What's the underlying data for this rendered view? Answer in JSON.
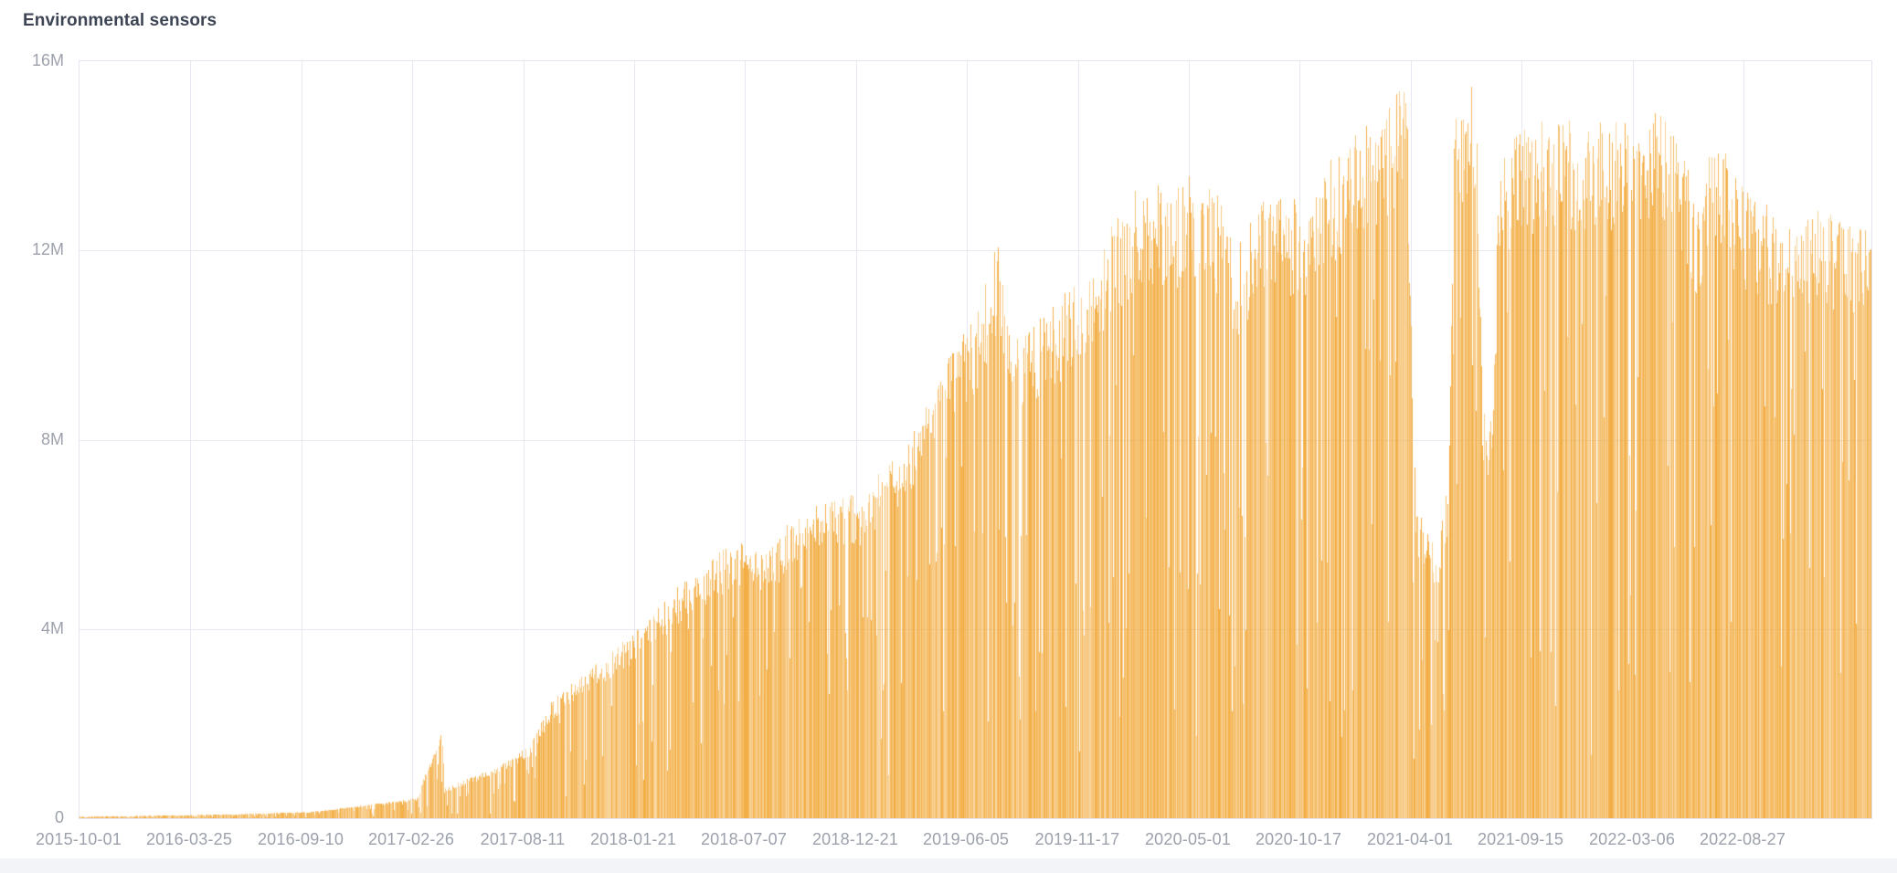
{
  "panel": {
    "title": "Environmental sensors"
  },
  "colors": {
    "bar": "#f2aa3c",
    "bar_rgb": [
      242,
      170,
      60
    ],
    "grid": "#e6e8f2",
    "plot_border": "#e3e5f0",
    "title_text": "#3d4454",
    "axis_text": "#9ca1ab",
    "background": "#ffffff",
    "footer_strip": "#f3f4f7"
  },
  "chart_data": {
    "type": "bar",
    "title": "Environmental sensors",
    "xlabel": "",
    "ylabel": "",
    "grid": true,
    "legend": "none",
    "ylim": [
      0,
      16000000
    ],
    "y_ticks": [
      "0",
      "4M",
      "8M",
      "12M",
      "16M"
    ],
    "x_ticks": [
      "2015-10-01",
      "2016-03-25",
      "2016-09-10",
      "2017-02-26",
      "2017-08-11",
      "2018-01-21",
      "2018-07-07",
      "2018-12-21",
      "2019-06-05",
      "2019-11-17",
      "2020-05-01",
      "2020-10-17",
      "2021-04-01",
      "2021-09-15",
      "2022-03-06",
      "2022-08-27"
    ],
    "x_range": [
      "2015-10-01",
      "2023-02-25"
    ],
    "bar_granularity": "daily",
    "series": [
      {
        "name": "Environmental sensors",
        "envelope_points_millions": [
          [
            "2015-10-01",
            0.03
          ],
          [
            "2016-01-01",
            0.05
          ],
          [
            "2016-04-01",
            0.07
          ],
          [
            "2016-07-01",
            0.1
          ],
          [
            "2016-09-10",
            0.13
          ],
          [
            "2016-11-01",
            0.22
          ],
          [
            "2017-01-01",
            0.32
          ],
          [
            "2017-02-20",
            0.42
          ],
          [
            "2017-03-31",
            1.88
          ],
          [
            "2017-04-03",
            0.62
          ],
          [
            "2017-05-15",
            0.85
          ],
          [
            "2017-07-01",
            1.15
          ],
          [
            "2017-08-11",
            1.5
          ],
          [
            "2017-09-11",
            2.4
          ],
          [
            "2017-11-01",
            3.0
          ],
          [
            "2018-01-21",
            3.9
          ],
          [
            "2018-03-28",
            4.85
          ],
          [
            "2018-05-15",
            5.4
          ],
          [
            "2018-07-07",
            5.85
          ],
          [
            "2018-08-05",
            5.45
          ],
          [
            "2018-09-15",
            6.3
          ],
          [
            "2018-12-21",
            6.7
          ],
          [
            "2019-01-15",
            7.0
          ],
          [
            "2019-02-19",
            7.65
          ],
          [
            "2019-04-01",
            8.6
          ],
          [
            "2019-05-20",
            10.0
          ],
          [
            "2019-06-20",
            10.6
          ],
          [
            "2019-07-20",
            12.1
          ],
          [
            "2019-08-05",
            9.9
          ],
          [
            "2019-09-15",
            10.2
          ],
          [
            "2019-11-01",
            10.9
          ],
          [
            "2019-11-20",
            11.1
          ],
          [
            "2019-12-20",
            11.9
          ],
          [
            "2020-01-20",
            12.5
          ],
          [
            "2020-02-25",
            13.2
          ],
          [
            "2020-04-05",
            12.9
          ],
          [
            "2020-05-01",
            13.2
          ],
          [
            "2020-06-10",
            12.9
          ],
          [
            "2020-07-10",
            11.7
          ],
          [
            "2020-08-10",
            12.6
          ],
          [
            "2020-09-20",
            12.9
          ],
          [
            "2020-10-25",
            12.6
          ],
          [
            "2020-12-01",
            13.6
          ],
          [
            "2021-01-20",
            14.3
          ],
          [
            "2021-03-01",
            14.8
          ],
          [
            "2021-03-25",
            15.2
          ],
          [
            "2021-04-08",
            6.4
          ],
          [
            "2021-05-10",
            5.5
          ],
          [
            "2021-05-28",
            7.0
          ],
          [
            "2021-06-05",
            15.1
          ],
          [
            "2021-07-08",
            15.0
          ],
          [
            "2021-07-18",
            8.4
          ],
          [
            "2021-08-02",
            8.2
          ],
          [
            "2021-08-12",
            13.6
          ],
          [
            "2021-09-15",
            14.2
          ],
          [
            "2021-11-01",
            14.4
          ],
          [
            "2022-01-15",
            14.4
          ],
          [
            "2022-03-06",
            14.5
          ],
          [
            "2022-04-10",
            14.6
          ],
          [
            "2022-05-05",
            14.2
          ],
          [
            "2022-05-25",
            13.3
          ],
          [
            "2022-06-08",
            12.6
          ],
          [
            "2022-06-22",
            14.0
          ],
          [
            "2022-07-20",
            13.7
          ],
          [
            "2022-08-12",
            13.0
          ],
          [
            "2022-08-27",
            12.8
          ],
          [
            "2022-10-01",
            12.5
          ],
          [
            "2022-11-10",
            12.7
          ],
          [
            "2022-12-20",
            12.4
          ],
          [
            "2023-02-25",
            12.4
          ]
        ],
        "daily_variation": {
          "top_jitter_factor": [
            0.86,
            1.03
          ],
          "dip_probability": 0.11,
          "dip_factor": [
            0.42,
            0.8
          ],
          "deep_dip_probability": 0.035,
          "deep_dip_factor": [
            0.1,
            0.4
          ]
        },
        "high_dip_periods": [
          {
            "from": "2019-11-01",
            "to": "2020-02-15",
            "deep_dip_probability": 0.09
          },
          {
            "from": "2020-06-15",
            "to": "2020-08-15",
            "deep_dip_probability": 0.08
          },
          {
            "from": "2022-04-20",
            "to": "2022-06-15",
            "deep_dip_probability": 0.08
          }
        ]
      }
    ]
  }
}
